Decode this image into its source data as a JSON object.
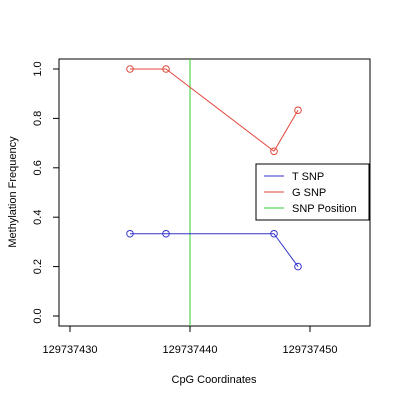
{
  "chart_data": {
    "type": "line",
    "title": "",
    "xlabel": "CpG Coordinates",
    "ylabel": "Methylation Frequency",
    "xlim": [
      129737430,
      129737455
    ],
    "ylim": [
      0,
      1
    ],
    "x_ticks": [
      129737430,
      129737440,
      129737450
    ],
    "x_tick_labels": [
      "129737430",
      "129737440",
      "129737450"
    ],
    "y_ticks": [
      0,
      0.2,
      0.4,
      0.6,
      0.8,
      1
    ],
    "y_tick_labels": [
      "0.0",
      "0.2",
      "0.4",
      "0.6",
      "0.8",
      "1.0"
    ],
    "grid": false,
    "legend_position": "right",
    "series": [
      {
        "name": "T SNP",
        "color": "#3333cc",
        "x": [
          129737435,
          129737438,
          129737447,
          129737449
        ],
        "y": [
          0.333,
          0.333,
          0.333,
          0.2
        ]
      },
      {
        "name": "G SNP",
        "color": "#e0453a",
        "x": [
          129737435,
          129737438,
          129737447,
          129737449
        ],
        "y": [
          1.0,
          1.0,
          0.667,
          0.833
        ]
      }
    ],
    "vline": {
      "name": "SNP Position",
      "color": "#33cc33",
      "x": 129737440
    }
  }
}
